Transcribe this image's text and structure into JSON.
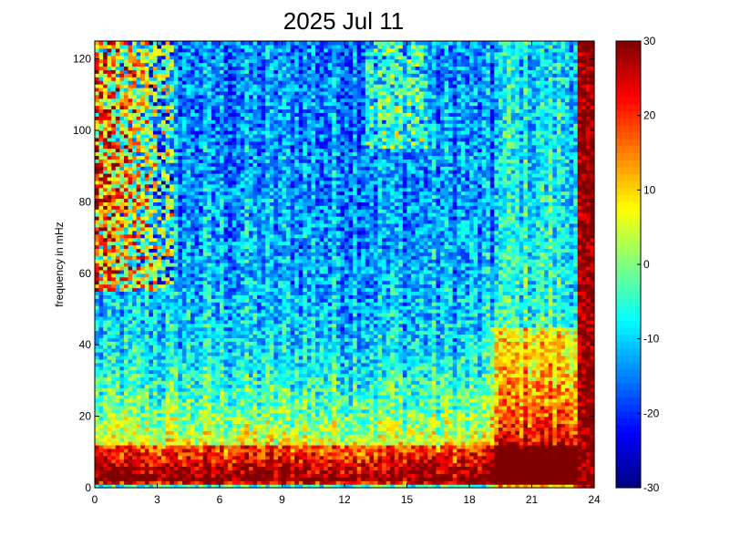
{
  "chart_data": {
    "type": "heatmap",
    "title": "2025 Jul 11",
    "xlabel": "",
    "ylabel": "frequency in mHz",
    "xlim": [
      0,
      24
    ],
    "ylim": [
      0,
      125
    ],
    "x_ticks": [
      0,
      3,
      6,
      9,
      12,
      15,
      18,
      21,
      24
    ],
    "y_ticks": [
      0,
      20,
      40,
      60,
      80,
      100,
      120
    ],
    "colorbar": {
      "limits": [
        -30,
        30
      ],
      "ticks": [
        30,
        20,
        10,
        0,
        -10,
        -20,
        -30
      ],
      "colormap": "jet"
    },
    "grid": false,
    "x_bins": 120,
    "y_bins": 125,
    "description_values": {
      "background_level_high_freq": -15,
      "low_band_level_0_10mHz": 30,
      "late_day_burst_start_hour": 19.0,
      "saturated_band_start_hour": 23.2,
      "saturated_early_region_end_hour": 3.8
    }
  }
}
